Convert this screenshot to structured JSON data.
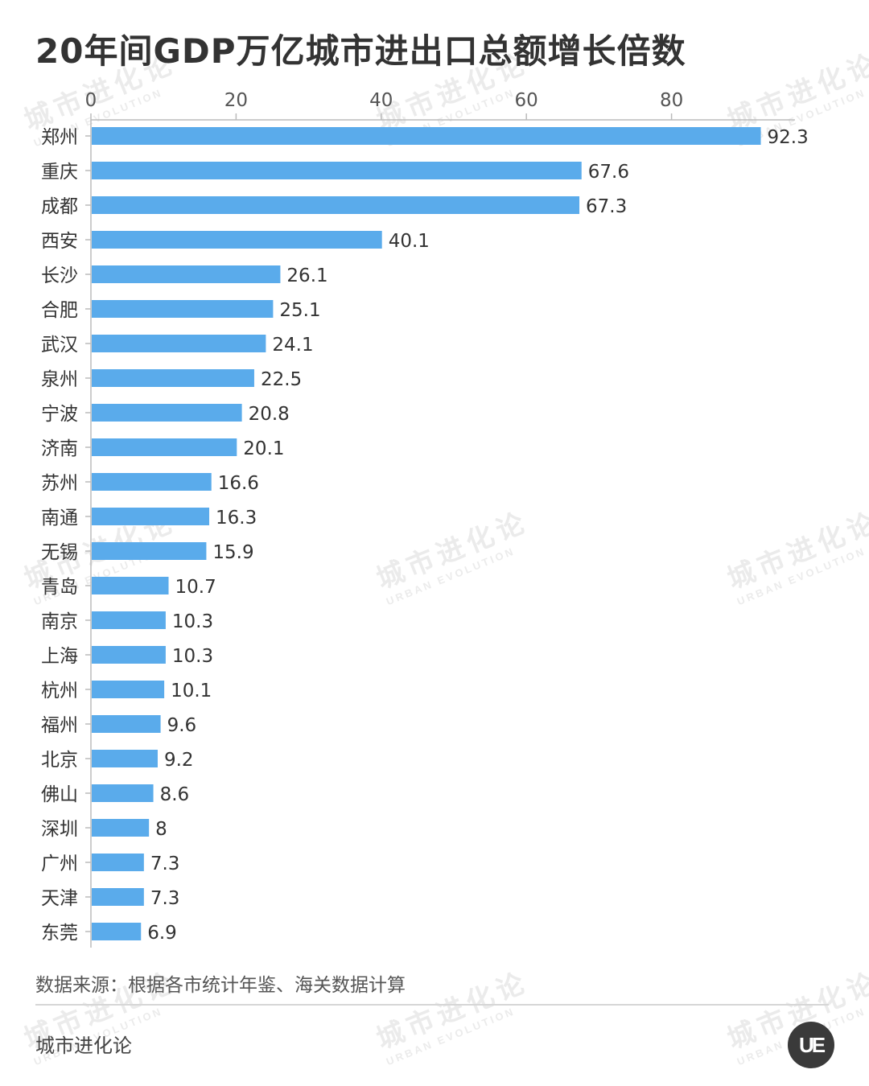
{
  "title": "20年间GDP万亿城市进出口总额增长倍数",
  "source": "数据来源：根据各市统计年鉴、海关数据计算",
  "brand": "城市进化论",
  "logo_text": "UE",
  "watermark": {
    "cn": "城市进化论",
    "en": "URBAN EVOLUTION"
  },
  "colors": {
    "bar": "#5aabeb",
    "axis": "#bbbbbb",
    "text": "#333333"
  },
  "chart_data": {
    "type": "bar",
    "orientation": "horizontal",
    "title": "20年间GDP万亿城市进出口总额增长倍数",
    "xlabel": "",
    "ylabel": "",
    "xlim": [
      0,
      97
    ],
    "ticks": [
      0,
      20,
      40,
      60,
      80
    ],
    "tick_labels": [
      "0",
      "20",
      "40",
      "60",
      "80"
    ],
    "grid": false,
    "legend": "none",
    "categories": [
      "郑州",
      "重庆",
      "成都",
      "西安",
      "长沙",
      "合肥",
      "武汉",
      "泉州",
      "宁波",
      "济南",
      "苏州",
      "南通",
      "无锡",
      "青岛",
      "南京",
      "上海",
      "杭州",
      "福州",
      "北京",
      "佛山",
      "深圳",
      "广州",
      "天津",
      "东莞"
    ],
    "values": [
      92.3,
      67.6,
      67.3,
      40.1,
      26.1,
      25.1,
      24.1,
      22.5,
      20.8,
      20.1,
      16.6,
      16.3,
      15.9,
      10.7,
      10.3,
      10.3,
      10.1,
      9.6,
      9.2,
      8.6,
      8,
      7.3,
      7.3,
      6.9
    ],
    "value_labels": [
      "92.3",
      "67.6",
      "67.3",
      "40.1",
      "26.1",
      "25.1",
      "24.1",
      "22.5",
      "20.8",
      "20.1",
      "16.6",
      "16.3",
      "15.9",
      "10.7",
      "10.3",
      "10.3",
      "10.1",
      "9.6",
      "9.2",
      "8.6",
      "8",
      "7.3",
      "7.3",
      "6.9"
    ]
  }
}
